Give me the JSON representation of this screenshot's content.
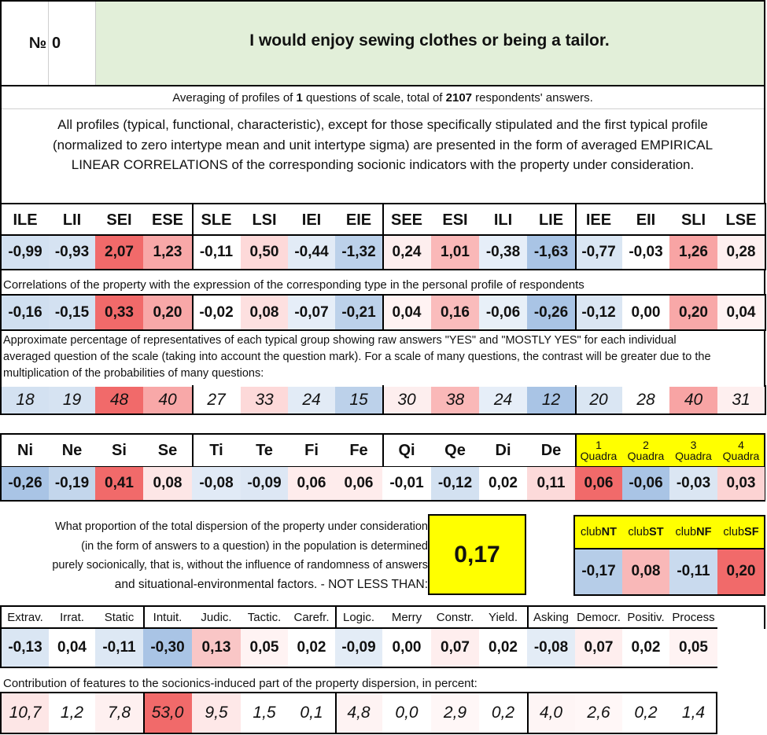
{
  "header": {
    "number_label": "№",
    "number_value": "0",
    "question": "I would enjoy sewing clothes or being a tailor."
  },
  "summary": {
    "pre": "Averaging of profiles of ",
    "questions": "1",
    "mid": " questions of scale, total of ",
    "respondents": "2107",
    "post": " respondents' answers."
  },
  "description": [
    "All profiles (typical, functional, characteristic), except for those specifically stipulated and the first typical profile",
    "(normalized to zero intertype mean and unit intertype sigma) are presented in the form of averaged EMPIRICAL",
    "LINEAR CORRELATIONS of the corresponding socionic indicators with the property under consideration."
  ],
  "types": {
    "headers": [
      "ILE",
      "LII",
      "SEI",
      "ESE",
      "SLE",
      "LSI",
      "IEI",
      "EIE",
      "SEE",
      "ESI",
      "ILI",
      "LIE",
      "IEE",
      "EII",
      "SLI",
      "LSE"
    ],
    "profile": [
      "-0,99",
      "-0,93",
      "2,07",
      "1,23",
      "-0,11",
      "0,50",
      "-0,44",
      "-1,32",
      "0,24",
      "1,01",
      "-0,38",
      "-1,63",
      "-0,77",
      "-0,03",
      "1,26",
      "0,28"
    ],
    "profile_colors": [
      "#d3e1f1",
      "#d6e3f2",
      "#f16a6a",
      "#f8a8a8",
      "#ffffff",
      "#fdd9d9",
      "#e2ebf6",
      "#bcd1ea",
      "#fdeeee",
      "#fab8b8",
      "#e6eef8",
      "#a9c4e5",
      "#dae6f3",
      "#ffffff",
      "#f8a4a4",
      "#feefef"
    ],
    "corr_caption": "Correlations of the property with the expression of the corresponding type in the personal profile of respondents",
    "corr": [
      "-0,16",
      "-0,15",
      "0,33",
      "0,20",
      "-0,02",
      "0,08",
      "-0,07",
      "-0,21",
      "0,04",
      "0,16",
      "-0,06",
      "-0,26",
      "-0,12",
      "0,00",
      "0,20",
      "0,04"
    ],
    "corr_colors": [
      "#d0dff0",
      "#d3e1f1",
      "#f16a6a",
      "#f8a8a8",
      "#ffffff",
      "#fde0e0",
      "#e6eef8",
      "#bcd1ea",
      "#fff3f3",
      "#fabcbc",
      "#e8f0f8",
      "#a9c4e5",
      "#dbe6f3",
      "#ffffff",
      "#f8a8a8",
      "#fff3f3"
    ],
    "pct_caption": [
      "Approximate percentage of representatives of each typical group showing raw answers \"YES\" and \"MOSTLY YES\" for each individual",
      "averaged question of the scale (taking into account the question mark). For a scale of many questions, the contrast will be greater due to the",
      "multiplication of the probabilities of many questions:"
    ],
    "pct": [
      "18",
      "19",
      "48",
      "40",
      "27",
      "33",
      "24",
      "15",
      "30",
      "38",
      "24",
      "12",
      "20",
      "28",
      "40",
      "31"
    ],
    "pct_colors": [
      "#d3e1f1",
      "#d6e3f2",
      "#f16a6a",
      "#f8a8a8",
      "#ffffff",
      "#fdd9d9",
      "#e2ebf6",
      "#bcd1ea",
      "#fdeeee",
      "#fab8b8",
      "#e6eef8",
      "#a9c4e5",
      "#dae6f3",
      "#ffffff",
      "#f8a4a4",
      "#feefef"
    ]
  },
  "functions": {
    "headers": [
      "Ni",
      "Ne",
      "Si",
      "Se",
      "Ti",
      "Te",
      "Fi",
      "Fe",
      "Qi",
      "Qe",
      "Di",
      "De"
    ],
    "values": [
      "-0,26",
      "-0,19",
      "0,41",
      "0,08",
      "-0,08",
      "-0,09",
      "0,06",
      "0,06",
      "-0,01",
      "-0,12",
      "0,02",
      "0,11"
    ],
    "colors": [
      "#a9c4e5",
      "#c3d6ec",
      "#f16a6a",
      "#fde6e6",
      "#e1eaf6",
      "#dde7f4",
      "#feecec",
      "#feecec",
      "#ffffff",
      "#d3e1f1",
      "#ffffff",
      "#fcdada"
    ],
    "quadra_num": [
      "1",
      "2",
      "3",
      "4"
    ],
    "quadra_word": "Quadra",
    "quadra_values": [
      "0,06",
      "-0,06",
      "-0,03",
      "0,03"
    ],
    "quadra_colors": [
      "#f16a6a",
      "#a9c4e5",
      "#dbe6f3",
      "#fcd3d3"
    ]
  },
  "dispersion": {
    "lines": [
      "What proportion of the total dispersion of the property under consideration",
      "(in the form of answers to a question) in the population is determined",
      "purely socionically, that is, without the influence of randomness of answers",
      "and situational-environmental factors. - NOT LESS THAN:"
    ],
    "value": "0,17"
  },
  "clubs": {
    "prefix": "club",
    "names": [
      "NT",
      "ST",
      "NF",
      "SF"
    ],
    "values": [
      "-0,17",
      "0,08",
      "-0,11",
      "0,20"
    ],
    "colors": [
      "#b6cde8",
      "#f9b8b8",
      "#c9daee",
      "#f16a6a"
    ]
  },
  "traits": {
    "headers": [
      "Extrav.",
      "Irrat.",
      "Static",
      "Intuit.",
      "Judic.",
      "Tactic.",
      "Carefr.",
      "Logic.",
      "Merry",
      "Constr.",
      "Yield.",
      "Asking",
      "Democr.",
      "Positiv.",
      "Process"
    ],
    "values": [
      "-0,13",
      "0,04",
      "-0,11",
      "-0,30",
      "0,13",
      "0,05",
      "0,02",
      "-0,09",
      "0,00",
      "0,07",
      "0,02",
      "-0,08",
      "0,07",
      "0,02",
      "0,05"
    ],
    "colors": [
      "#dae6f3",
      "#ffffff",
      "#dde8f4",
      "#a9c4e5",
      "#f9c6c6",
      "#fff3f3",
      "#ffffff",
      "#e3ecf6",
      "#ffffff",
      "#feeeee",
      "#ffffff",
      "#e3ecf6",
      "#feeeee",
      "#ffffff",
      "#fff3f3"
    ],
    "contrib_caption": "Contribution of features to the socionics-induced part of the property dispersion, in percent:",
    "contrib": [
      "10,7",
      "1,2",
      "7,8",
      "53,0",
      "9,5",
      "1,5",
      "0,1",
      "4,8",
      "0,0",
      "2,9",
      "0,2",
      "4,0",
      "2,6",
      "0,2",
      "1,4"
    ],
    "contrib_colors": [
      "#fde6e6",
      "#ffffff",
      "#fef0f0",
      "#f16a6a",
      "#fee8e8",
      "#ffffff",
      "#ffffff",
      "#fef3f3",
      "#ffffff",
      "#fff7f7",
      "#ffffff",
      "#fef5f5",
      "#fff7f7",
      "#ffffff",
      "#ffffff"
    ]
  }
}
